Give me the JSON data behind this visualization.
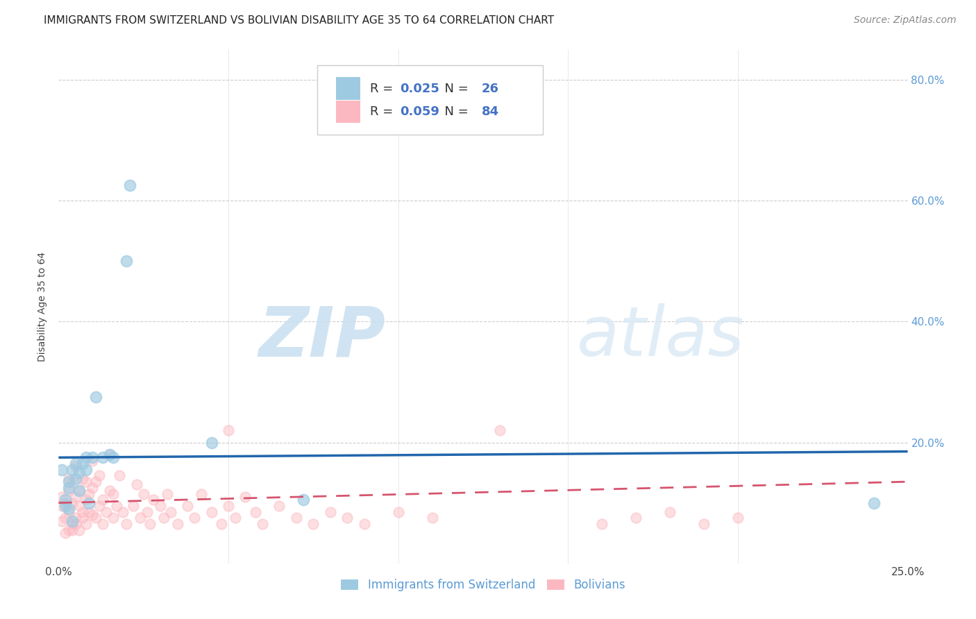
{
  "title": "IMMIGRANTS FROM SWITZERLAND VS BOLIVIAN DISABILITY AGE 35 TO 64 CORRELATION CHART",
  "source": "Source: ZipAtlas.com",
  "ylabel": "Disability Age 35 to 64",
  "xlim": [
    0.0,
    0.25
  ],
  "ylim": [
    0.0,
    0.85
  ],
  "xticks": [
    0.0,
    0.05,
    0.1,
    0.15,
    0.2,
    0.25
  ],
  "xticklabels": [
    "0.0%",
    "",
    "",
    "",
    "",
    "25.0%"
  ],
  "yticks": [
    0.0,
    0.2,
    0.4,
    0.6,
    0.8
  ],
  "yticklabels": [
    "",
    "20.0%",
    "40.0%",
    "60.0%",
    "80.0%"
  ],
  "legend1_label": "Immigrants from Switzerland",
  "legend2_label": "Bolivians",
  "r1": "0.025",
  "n1": "26",
  "r2": "0.059",
  "n2": "84",
  "blue_color": "#9ecae1",
  "pink_color": "#fcb8c0",
  "trend_blue": "#2166ac",
  "trend_pink": "#d6546e",
  "background": "#ffffff",
  "grid_color": "#cccccc",
  "swiss_x": [
    0.001,
    0.002,
    0.002,
    0.003,
    0.003,
    0.003,
    0.004,
    0.004,
    0.005,
    0.005,
    0.006,
    0.006,
    0.007,
    0.008,
    0.008,
    0.009,
    0.01,
    0.011,
    0.013,
    0.015,
    0.016,
    0.02,
    0.021,
    0.045,
    0.072,
    0.24
  ],
  "swiss_y": [
    0.155,
    0.095,
    0.105,
    0.125,
    0.09,
    0.135,
    0.155,
    0.07,
    0.165,
    0.14,
    0.15,
    0.12,
    0.165,
    0.175,
    0.155,
    0.1,
    0.175,
    0.275,
    0.175,
    0.18,
    0.175,
    0.5,
    0.625,
    0.2,
    0.105,
    0.1
  ],
  "bolivia_x": [
    0.001,
    0.001,
    0.001,
    0.002,
    0.002,
    0.002,
    0.003,
    0.003,
    0.003,
    0.003,
    0.004,
    0.004,
    0.004,
    0.004,
    0.005,
    0.005,
    0.005,
    0.005,
    0.006,
    0.006,
    0.006,
    0.007,
    0.007,
    0.007,
    0.008,
    0.008,
    0.008,
    0.009,
    0.009,
    0.01,
    0.01,
    0.01,
    0.011,
    0.011,
    0.012,
    0.012,
    0.013,
    0.013,
    0.014,
    0.015,
    0.015,
    0.016,
    0.016,
    0.017,
    0.018,
    0.019,
    0.02,
    0.022,
    0.023,
    0.024,
    0.025,
    0.026,
    0.027,
    0.028,
    0.03,
    0.031,
    0.032,
    0.033,
    0.035,
    0.038,
    0.04,
    0.042,
    0.045,
    0.048,
    0.05,
    0.052,
    0.055,
    0.058,
    0.06,
    0.065,
    0.05,
    0.07,
    0.075,
    0.08,
    0.085,
    0.09,
    0.1,
    0.11,
    0.13,
    0.16,
    0.17,
    0.18,
    0.19,
    0.2
  ],
  "bolivia_y": [
    0.095,
    0.07,
    0.11,
    0.05,
    0.075,
    0.1,
    0.055,
    0.085,
    0.12,
    0.14,
    0.065,
    0.1,
    0.135,
    0.055,
    0.075,
    0.11,
    0.16,
    0.065,
    0.095,
    0.12,
    0.055,
    0.085,
    0.14,
    0.075,
    0.105,
    0.135,
    0.065,
    0.115,
    0.085,
    0.08,
    0.125,
    0.17,
    0.075,
    0.135,
    0.095,
    0.145,
    0.065,
    0.105,
    0.085,
    0.12,
    0.18,
    0.075,
    0.115,
    0.095,
    0.145,
    0.085,
    0.065,
    0.095,
    0.13,
    0.075,
    0.115,
    0.085,
    0.065,
    0.105,
    0.095,
    0.075,
    0.115,
    0.085,
    0.065,
    0.095,
    0.075,
    0.115,
    0.085,
    0.065,
    0.095,
    0.075,
    0.11,
    0.085,
    0.065,
    0.095,
    0.22,
    0.075,
    0.065,
    0.085,
    0.075,
    0.065,
    0.085,
    0.075,
    0.22,
    0.065,
    0.075,
    0.085,
    0.065,
    0.075
  ],
  "watermark_zip": "ZIP",
  "watermark_atlas": "atlas",
  "title_fontsize": 11,
  "axis_label_fontsize": 10,
  "tick_fontsize": 11,
  "legend_fontsize": 13,
  "source_fontsize": 10
}
